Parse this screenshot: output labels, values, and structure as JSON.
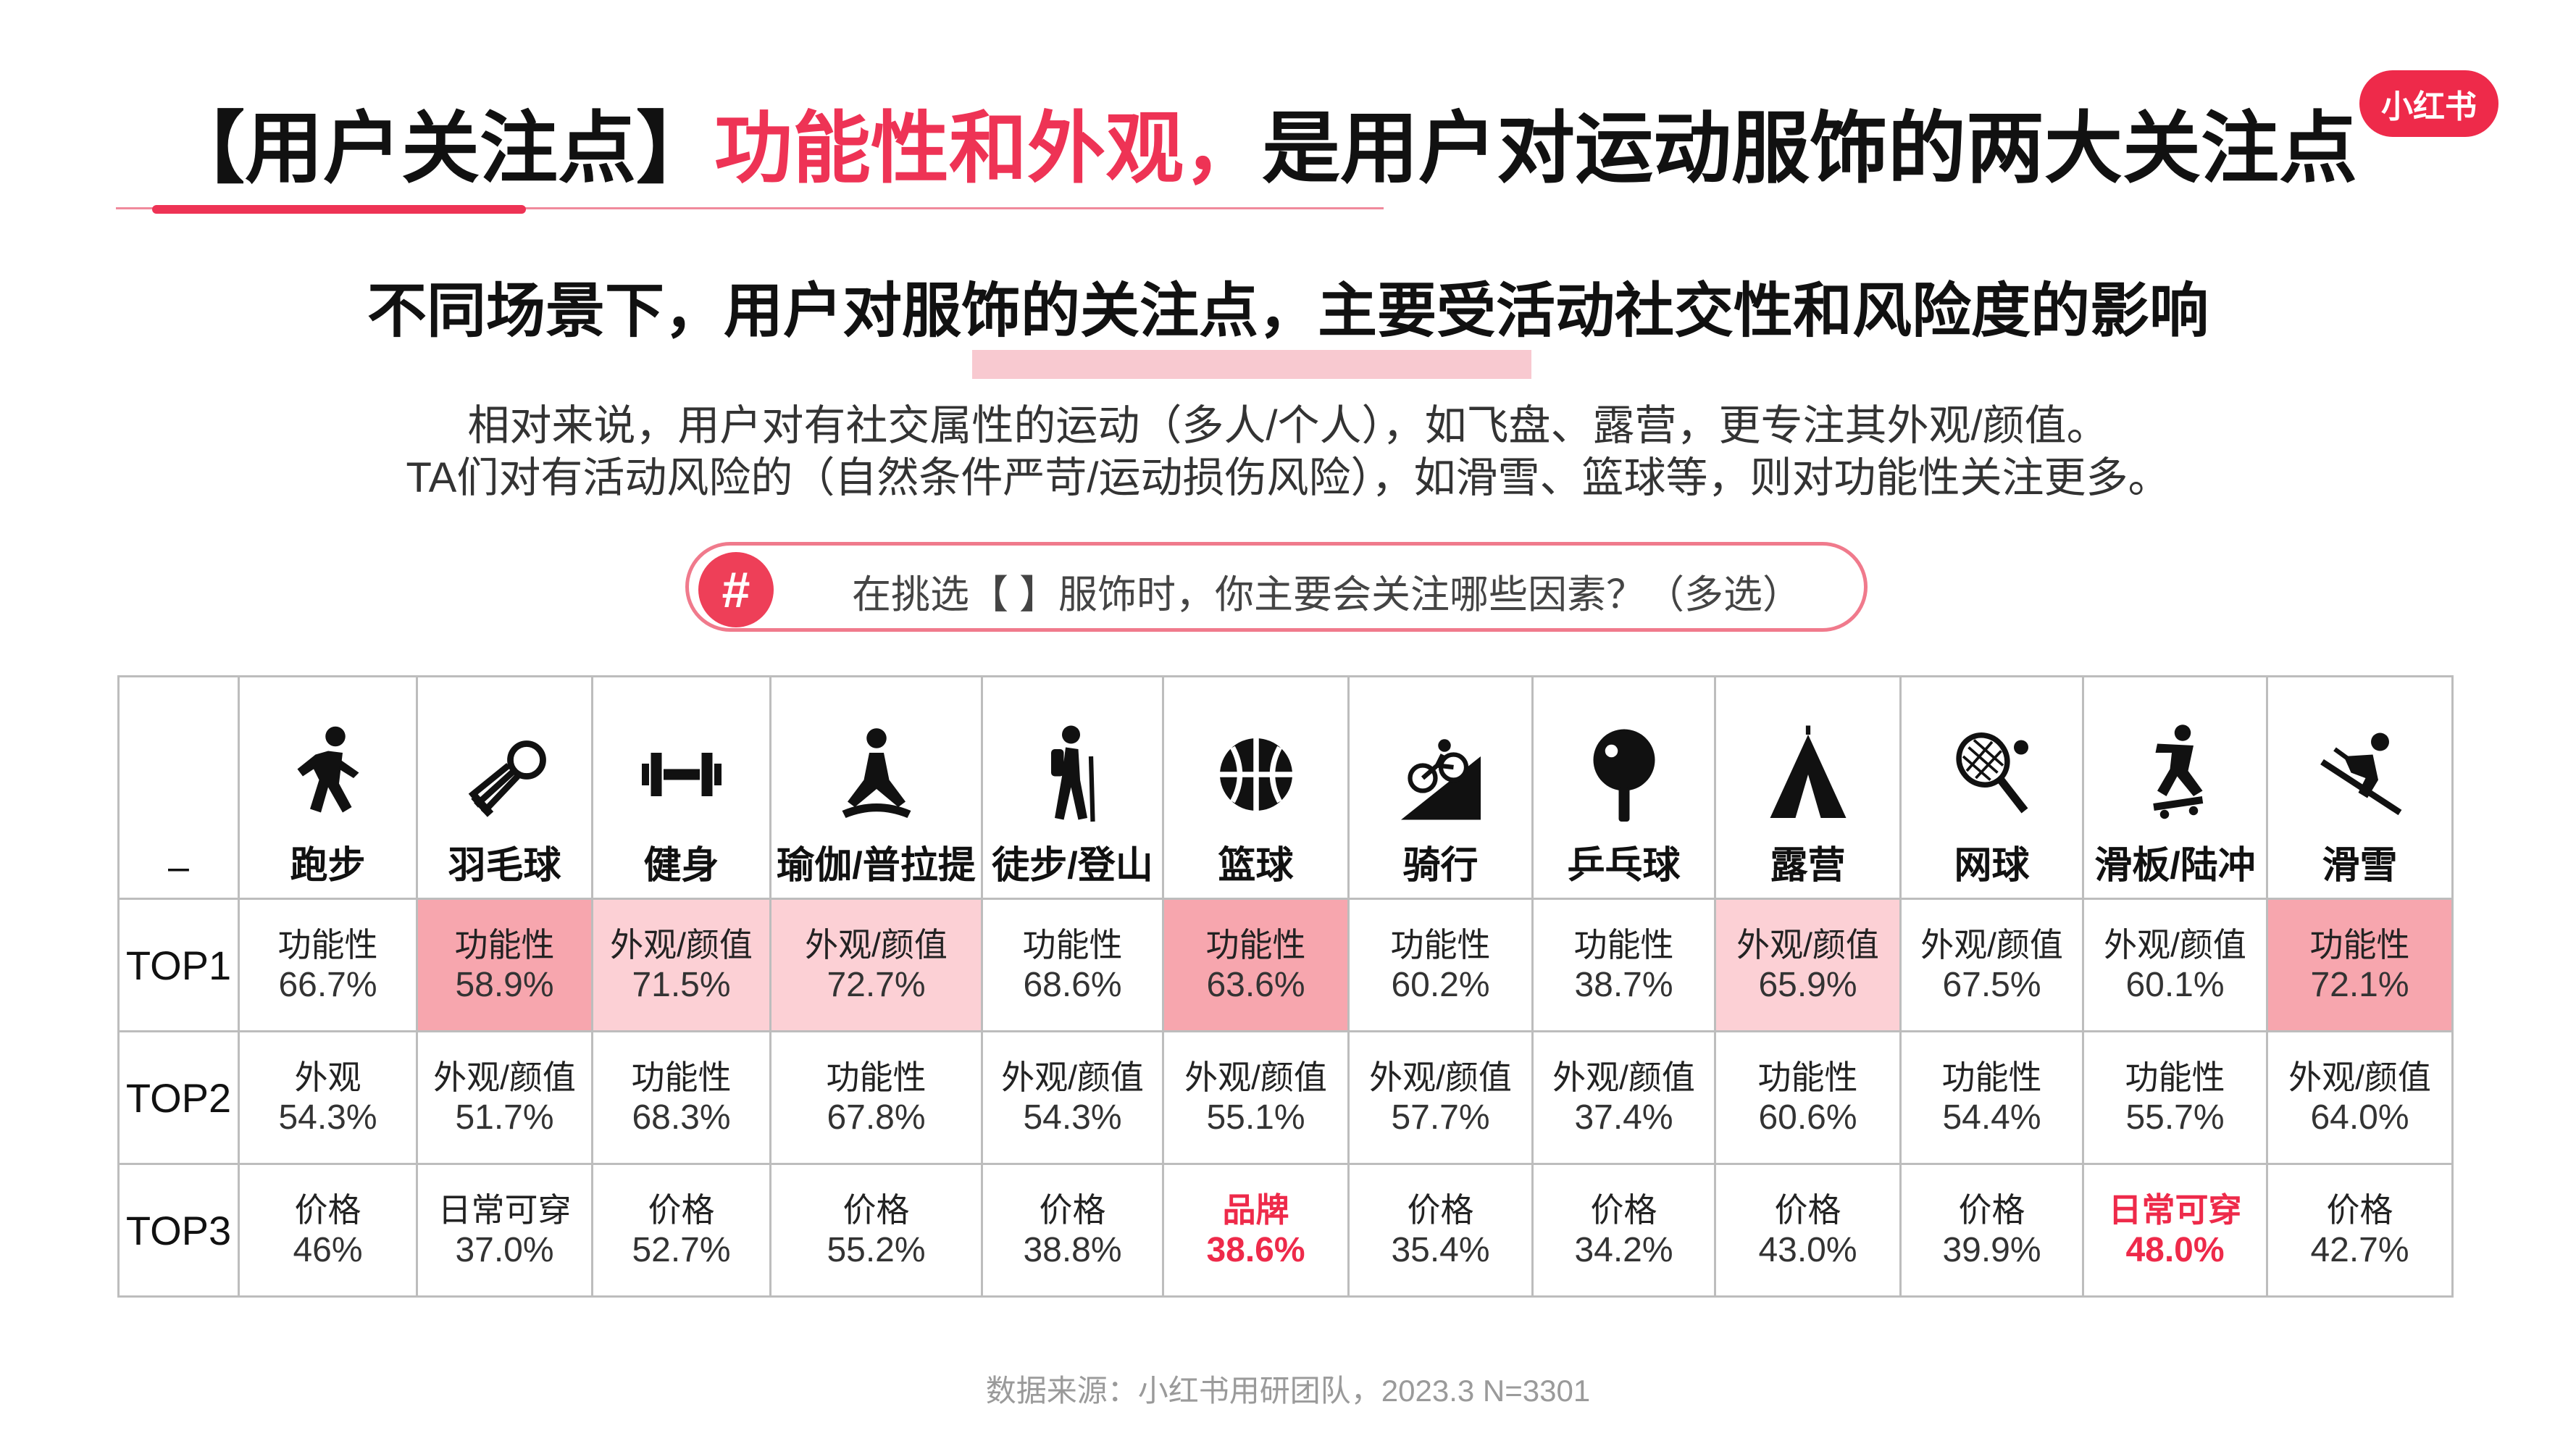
{
  "header": {
    "title_part1": "【用户关注点】",
    "title_highlight": "功能性和外观，",
    "title_part2": "是用户对运动服饰的两大关注点",
    "logo": "小红书"
  },
  "subtitle": "不同场景下，用户对服饰的关注点，主要受活动社交性和风险度的影响",
  "description": [
    "相对来说，用户对有社交属性的运动（多人/个人），如飞盘、露营，更专注其外观/颜值。",
    "TA们对有活动风险的（自然条件严苛/运动损伤风险），如滑雪、篮球等，则对功能性关注更多。"
  ],
  "question": {
    "icon": "#",
    "text": "在挑选【 】服饰时，你主要会关注哪些因素？（多选）"
  },
  "table": {
    "corner": "–",
    "sports": [
      {
        "name": "跑步",
        "icon": "running-icon"
      },
      {
        "name": "羽毛球",
        "icon": "shuttlecock-icon"
      },
      {
        "name": "健身",
        "icon": "dumbbell-icon"
      },
      {
        "name": "瑜伽/普拉提",
        "icon": "yoga-icon"
      },
      {
        "name": "徒步/登山",
        "icon": "hiking-icon"
      },
      {
        "name": "篮球",
        "icon": "basketball-icon"
      },
      {
        "name": "骑行",
        "icon": "cycling-icon"
      },
      {
        "name": "乒乓球",
        "icon": "ping-pong-icon"
      },
      {
        "name": "露营",
        "icon": "tent-icon"
      },
      {
        "name": "网球",
        "icon": "tennis-icon"
      },
      {
        "name": "滑板/陆冲",
        "icon": "skateboard-icon"
      },
      {
        "name": "滑雪",
        "icon": "skiing-icon"
      }
    ],
    "rows": [
      {
        "rank": "TOP1",
        "cells": [
          {
            "label": "功能性",
            "value": "66.7%"
          },
          {
            "label": "功能性",
            "value": "58.9%"
          },
          {
            "label": "外观/颜值",
            "value": "71.5%"
          },
          {
            "label": "外观/颜值",
            "value": "72.7%"
          },
          {
            "label": "功能性",
            "value": "68.6%"
          },
          {
            "label": "功能性",
            "value": "63.6%"
          },
          {
            "label": "功能性",
            "value": "60.2%"
          },
          {
            "label": "功能性",
            "value": "38.7%"
          },
          {
            "label": "外观/颜值",
            "value": "65.9%"
          },
          {
            "label": "外观/颜值",
            "value": "67.5%"
          },
          {
            "label": "外观/颜值",
            "value": "60.1%"
          },
          {
            "label": "功能性",
            "value": "72.1%"
          }
        ]
      },
      {
        "rank": "TOP2",
        "cells": [
          {
            "label": "外观",
            "value": "54.3%"
          },
          {
            "label": "外观/颜值",
            "value": "51.7%"
          },
          {
            "label": "功能性",
            "value": "68.3%"
          },
          {
            "label": "功能性",
            "value": "67.8%"
          },
          {
            "label": "外观/颜值",
            "value": "54.3%"
          },
          {
            "label": "外观/颜值",
            "value": "55.1%"
          },
          {
            "label": "外观/颜值",
            "value": "57.7%"
          },
          {
            "label": "外观/颜值",
            "value": "37.4%"
          },
          {
            "label": "功能性",
            "value": "60.6%"
          },
          {
            "label": "功能性",
            "value": "54.4%"
          },
          {
            "label": "功能性",
            "value": "55.7%"
          },
          {
            "label": "外观/颜值",
            "value": "64.0%"
          }
        ]
      },
      {
        "rank": "TOP3",
        "cells": [
          {
            "label": "价格",
            "value": "46%"
          },
          {
            "label": "日常可穿",
            "value": "37.0%"
          },
          {
            "label": "价格",
            "value": "52.7%"
          },
          {
            "label": "价格",
            "value": "55.2%"
          },
          {
            "label": "价格",
            "value": "38.8%"
          },
          {
            "label": "品牌",
            "value": "38.6%"
          },
          {
            "label": "价格",
            "value": "35.4%"
          },
          {
            "label": "价格",
            "value": "34.2%"
          },
          {
            "label": "价格",
            "value": "43.0%"
          },
          {
            "label": "价格",
            "value": "39.9%"
          },
          {
            "label": "日常可穿",
            "value": "48.0%"
          },
          {
            "label": "价格",
            "value": "42.7%"
          }
        ]
      }
    ]
  },
  "colors": {
    "accent": "#ee3355",
    "shade_strong": "#f7a6ae",
    "shade_light": "#fcd0d5",
    "highlight_text": "#ee2a4a"
  },
  "source": "数据来源：小红书用研团队，2023.3 N=3301"
}
